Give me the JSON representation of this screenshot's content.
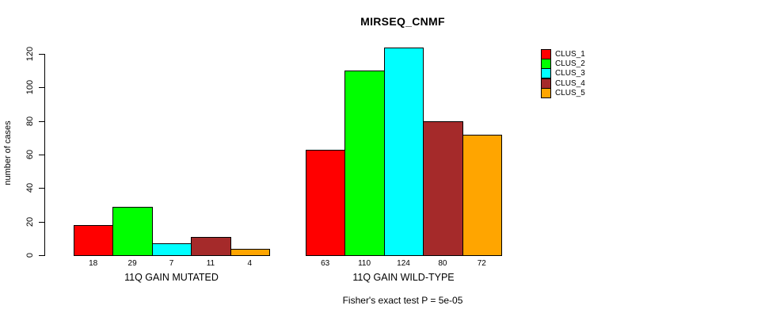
{
  "chart_data": {
    "type": "bar",
    "title": "MIRSEQ_CNMF",
    "ylabel": "number of cases",
    "xlabel": "",
    "ylim": [
      0,
      120
    ],
    "yticks": [
      0,
      20,
      40,
      60,
      80,
      100,
      120
    ],
    "grid": false,
    "legend_position": "right",
    "categories": [
      "11Q GAIN MUTATED",
      "11Q GAIN WILD-TYPE"
    ],
    "series": [
      {
        "name": "CLUS_1",
        "color": "#FF0000",
        "values": [
          18,
          63
        ]
      },
      {
        "name": "CLUS_2",
        "color": "#00FF00",
        "values": [
          29,
          110
        ]
      },
      {
        "name": "CLUS_3",
        "color": "#00FFFF",
        "values": [
          7,
          124
        ]
      },
      {
        "name": "CLUS_4",
        "color": "#A52A2A",
        "values": [
          11,
          80
        ]
      },
      {
        "name": "CLUS_5",
        "color": "#FFA500",
        "values": [
          4,
          72
        ]
      }
    ],
    "bar_value_labels": [
      [
        18,
        29,
        7,
        11,
        4
      ],
      [
        63,
        110,
        124,
        80,
        72
      ]
    ],
    "annotation": "Fisher's exact test P = 5e-05"
  }
}
